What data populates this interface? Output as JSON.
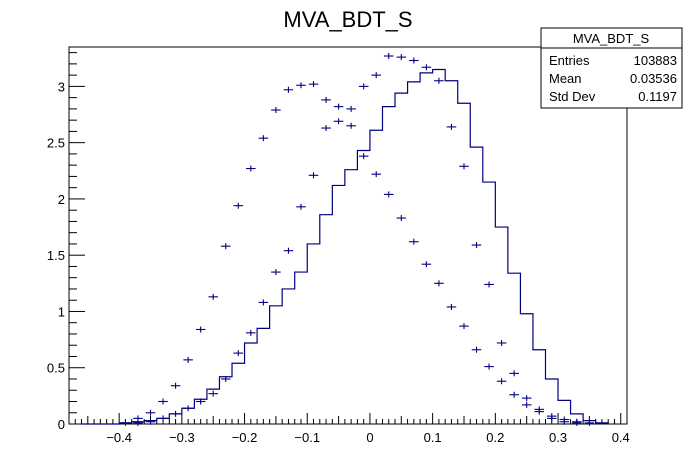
{
  "chart_data": {
    "type": "histogram",
    "title": "MVA_BDT_S",
    "xlim": [
      -0.48,
      0.41
    ],
    "ylim": [
      0,
      3.35
    ],
    "x_ticks": [
      -0.4,
      -0.3,
      -0.2,
      -0.1,
      0,
      0.1,
      0.2,
      0.3,
      0.4
    ],
    "x_tick_labels": [
      "−0.4",
      "−0.3",
      "−0.2",
      "−0.1",
      "0",
      "0.1",
      "0.2",
      "0.3",
      "0.4"
    ],
    "y_ticks": [
      0,
      0.5,
      1,
      1.5,
      2,
      2.5,
      3
    ],
    "y_tick_labels": [
      "0",
      "0.5",
      "1",
      "1.5",
      "2",
      "2.5",
      "3"
    ],
    "bin_edges": [
      -0.46,
      -0.44,
      -0.42,
      -0.4,
      -0.38,
      -0.36,
      -0.34,
      -0.32,
      -0.3,
      -0.28,
      -0.26,
      -0.24,
      -0.22,
      -0.2,
      -0.18,
      -0.16,
      -0.14,
      -0.12,
      -0.1,
      -0.08,
      -0.06,
      -0.04,
      -0.02,
      0.0,
      0.02,
      0.04,
      0.06,
      0.08,
      0.1,
      0.12,
      0.14,
      0.16,
      0.18,
      0.2,
      0.22,
      0.24,
      0.26,
      0.28,
      0.3,
      0.32,
      0.34,
      0.36,
      0.38
    ],
    "series": [
      {
        "style": "step",
        "color": "#000080",
        "values": [
          0.0,
          0.0,
          0.0,
          0.01,
          0.02,
          0.03,
          0.05,
          0.09,
          0.14,
          0.22,
          0.31,
          0.42,
          0.54,
          0.72,
          0.85,
          1.05,
          1.2,
          1.35,
          1.6,
          1.86,
          2.12,
          2.26,
          2.43,
          2.61,
          2.82,
          2.94,
          3.04,
          3.12,
          3.15,
          3.05,
          2.85,
          2.46,
          2.15,
          1.75,
          1.34,
          0.98,
          0.66,
          0.4,
          0.21,
          0.09,
          0.03,
          0.01
        ]
      },
      {
        "style": "errorbar",
        "color": "#000080",
        "values": [
          0.0,
          0.0,
          0.0,
          0.01,
          0.05,
          0.1,
          0.2,
          0.34,
          0.57,
          0.84,
          1.13,
          1.58,
          1.94,
          2.27,
          2.54,
          2.79,
          2.97,
          3.01,
          3.02,
          2.88,
          2.82,
          2.65,
          2.38,
          2.22,
          2.04,
          1.83,
          1.62,
          1.42,
          1.25,
          1.04,
          0.87,
          0.66,
          0.51,
          0.38,
          0.26,
          0.17,
          0.11,
          0.07,
          0.04,
          0.02,
          0.01,
          0.0
        ]
      },
      {
        "style": "errorbar",
        "color": "#000080",
        "values": [
          0.0,
          0.0,
          0.0,
          0.0,
          0.01,
          0.02,
          0.05,
          0.09,
          0.14,
          0.2,
          0.27,
          0.4,
          0.63,
          0.81,
          1.08,
          1.35,
          1.54,
          1.93,
          2.21,
          2.63,
          2.69,
          2.8,
          3.0,
          3.1,
          3.27,
          3.26,
          3.23,
          3.17,
          3.05,
          2.64,
          2.29,
          1.59,
          1.24,
          0.72,
          0.45,
          0.23,
          0.13,
          0.05,
          0.02,
          0.01,
          0.0,
          0.0
        ]
      }
    ],
    "stats_box": {
      "title": "MVA_BDT_S",
      "rows": [
        {
          "label": "Entries",
          "value": "103883"
        },
        {
          "label": "Mean",
          "value": "0.03536"
        },
        {
          "label": "Std Dev",
          "value": "0.1197"
        }
      ]
    },
    "grid": false,
    "legend": "none"
  }
}
